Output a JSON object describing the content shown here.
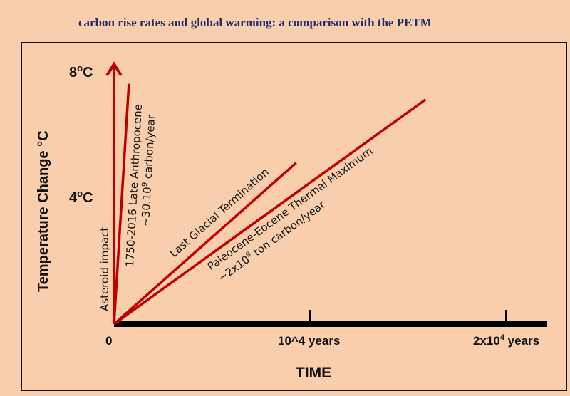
{
  "chart_data": {
    "type": "line",
    "title": "carbon rise rates and global warming: a comparison with the PETM",
    "xlabel": "TIME",
    "ylabel": "Temperature Change °C",
    "ylabel_parts": {
      "main": "Temperature Change ",
      "sup": "o",
      "unit": "C"
    },
    "xlim": [
      0,
      22000
    ],
    "ylim": [
      0,
      8
    ],
    "x_ticks": [
      {
        "value": 0,
        "label": "0",
        "base": "0",
        "sup": "",
        "suffix": ""
      },
      {
        "value": 10000,
        "label": "10^4 years",
        "base": "10",
        "sup": "4",
        "suffix": " years"
      },
      {
        "value": 20000,
        "label": "2x10^4 years",
        "base": "2x10",
        "sup": "4",
        "suffix": " years"
      }
    ],
    "y_ticks": [
      {
        "value": 4,
        "label": "4°C",
        "base": "4",
        "sup": "o",
        "suffix": "C"
      },
      {
        "value": 8,
        "label": "8°C",
        "base": "8",
        "sup": "o",
        "suffix": "C"
      }
    ],
    "series": [
      {
        "name": "Asteroid impact",
        "x": [
          0,
          0
        ],
        "y": [
          0,
          8.2
        ]
      },
      {
        "name": "1750-2016 Late Anthropocene",
        "note": "~30.10^9 carbon/year",
        "x": [
          0,
          760
        ],
        "y": [
          0,
          7.6
        ]
      },
      {
        "name": "Last Glacial Termination",
        "x": [
          0,
          9300
        ],
        "y": [
          0,
          5.1
        ]
      },
      {
        "name": "Paleocene-Eocene Thermal Maximum",
        "note": "~2x10^9 ton carbon/year",
        "x": [
          0,
          15900
        ],
        "y": [
          0,
          7.1
        ]
      }
    ],
    "annotations": {
      "asteroid": "Asteroid impact",
      "anthro_1": "1750-2016 Late Anthropocene",
      "anthro_2a": "~30.10",
      "anthro_2sup": "9",
      "anthro_2b": " carbon/year",
      "lgt": "Last Glacial Termination",
      "petm_1": "Paleocene-Eocene Thermal Maximum",
      "petm_2a": "~2x10",
      "petm_2sup": "9",
      "petm_2b": " ton carbon/year"
    },
    "grid": false,
    "line_color": "#C00000"
  }
}
